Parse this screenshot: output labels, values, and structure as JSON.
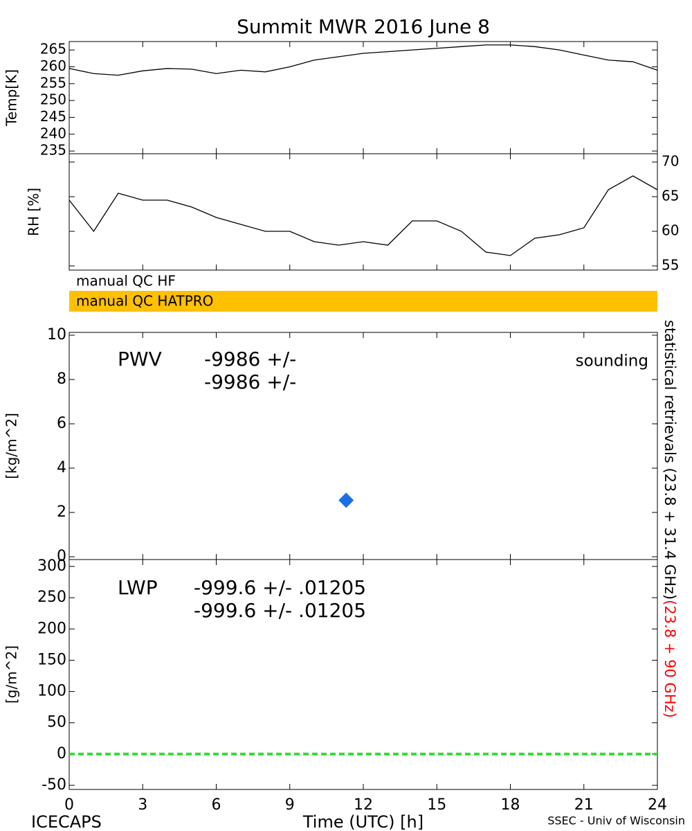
{
  "title": "Summit MWR 2016 June  8",
  "qc": [
    "manual QC HF",
    "manual QC HATPRO"
  ],
  "qc_colors": [
    "#ffffff",
    "#ffc000"
  ],
  "side_note": "statistical retrievals (23.8 + 31.4 GHz)",
  "side_note_red": "(23.8 + 90 GHz)",
  "footer_left": "ICECAPS",
  "footer_right": "SSEC - Univ of Wisconsin",
  "chart_data": [
    {
      "type": "line",
      "ylabel": "Temp[K]",
      "y_axis_side": "left",
      "series": [
        {
          "color": "#000000",
          "x": [
            0,
            1,
            2,
            3,
            4,
            5,
            6,
            7,
            8,
            9,
            10,
            11,
            12,
            13,
            14,
            15,
            16,
            17,
            18,
            19,
            20,
            21,
            22,
            23,
            24
          ],
          "values": [
            259.5,
            258,
            257.5,
            258.8,
            259.5,
            259.3,
            258,
            259,
            258.5,
            260,
            262,
            263,
            264,
            264.5,
            265,
            265.5,
            266,
            266.5,
            266.5,
            266,
            265,
            263.5,
            262,
            261.5,
            259
          ]
        }
      ],
      "xlim": [
        0,
        24
      ],
      "ylim": [
        234.2,
        267.5
      ],
      "yticks": [
        235,
        240,
        245,
        250,
        255,
        260,
        265
      ]
    },
    {
      "type": "line",
      "ylabel": "RH [%]",
      "y_axis_side": "right",
      "series": [
        {
          "color": "#000000",
          "x": [
            0,
            1,
            2,
            3,
            4,
            5,
            6,
            7,
            8,
            9,
            10,
            11,
            12,
            13,
            14,
            15,
            16,
            17,
            18,
            19,
            20,
            21,
            22,
            23,
            24
          ],
          "values": [
            64.5,
            60,
            65.5,
            64.5,
            64.5,
            63.5,
            62,
            61,
            60,
            60,
            58.5,
            58,
            58.5,
            58,
            61.5,
            61.5,
            60,
            57,
            56.5,
            59,
            59.5,
            60.5,
            66,
            68,
            66
          ]
        }
      ],
      "xlim": [
        0,
        24
      ],
      "ylim": [
        54.4,
        71.2
      ],
      "yticks": [
        55,
        60,
        65,
        70
      ]
    },
    {
      "type": "scatter",
      "ylabel": "[kg/m^2]",
      "y_axis_side": "left",
      "annotations": [
        "PWV",
        "-9986 +/-",
        "-9986 +/-"
      ],
      "annotation_colors": [
        "#000000",
        "#000000",
        "#ff0000"
      ],
      "series": [
        {
          "name": "sounding",
          "color": "#1a6fe8",
          "x": [
            11.3
          ],
          "values": [
            2.55
          ]
        }
      ],
      "xlim": [
        0,
        24
      ],
      "ylim": [
        -0.125,
        10.125
      ],
      "yticks": [
        0,
        2,
        4,
        6,
        8,
        10
      ]
    },
    {
      "type": "line",
      "ylabel": "[g/m^2]",
      "y_axis_side": "left",
      "xlabel": "Time (UTC) [h]",
      "annotations": [
        "LWP",
        "-999.6 +/- .01205",
        "-999.6 +/- .01205"
      ],
      "annotation_colors": [
        "#000000",
        "#000000",
        "#ff0000"
      ],
      "series": [
        {
          "color": "#33dd33",
          "dashed": true,
          "x": [
            0,
            24
          ],
          "values": [
            0,
            0
          ]
        }
      ],
      "xlim": [
        0,
        24
      ],
      "ylim": [
        -56.6,
        311
      ],
      "yticks": [
        -50,
        0,
        50,
        100,
        150,
        200,
        250,
        300
      ],
      "xticks": [
        0,
        3,
        6,
        9,
        12,
        15,
        18,
        21,
        24
      ]
    }
  ]
}
